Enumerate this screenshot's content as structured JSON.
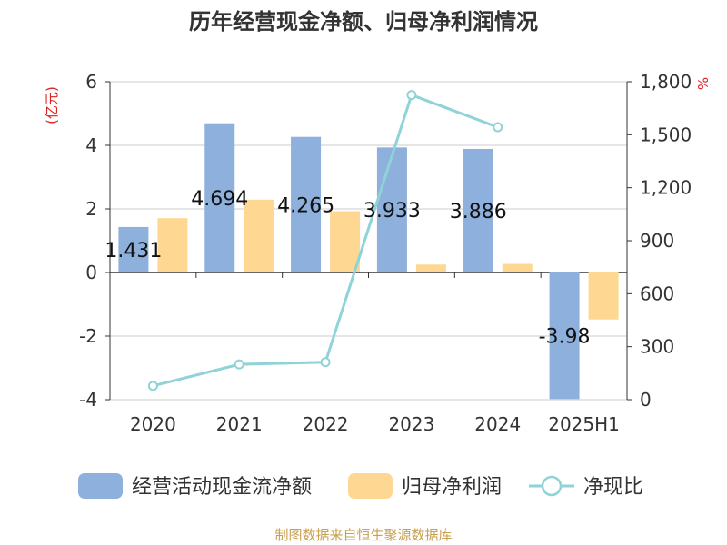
{
  "chart_data": {
    "type": "bar",
    "title": "历年经营现金净额、归母净利润情况",
    "categories": [
      "2020",
      "2021",
      "2022",
      "2023",
      "2024",
      "2025H1"
    ],
    "y_left": {
      "unit_label": "(亿元)",
      "range": [
        -4,
        6
      ],
      "ticks": [
        "-4",
        "-2",
        "0",
        "2",
        "4",
        "6"
      ]
    },
    "y_right": {
      "unit_label": "%",
      "range": [
        0,
        1800
      ],
      "ticks": [
        "0",
        "300",
        "600",
        "900",
        "1,200",
        "1,500",
        "1,800"
      ]
    },
    "series": [
      {
        "name": "经营活动现金流净额",
        "kind": "bar",
        "axis": "left",
        "color": "#8eb0dc",
        "values": [
          1.431,
          4.694,
          4.265,
          3.933,
          3.886,
          -3.98
        ],
        "labels": [
          "1.431",
          "4.694",
          "4.265",
          "3.933",
          "3.886",
          "-3.98"
        ]
      },
      {
        "name": "归母净利润",
        "kind": "bar",
        "axis": "left",
        "color": "#fed893",
        "values": [
          1.71,
          2.29,
          1.93,
          0.25,
          0.27,
          -1.48
        ]
      },
      {
        "name": "净现比",
        "kind": "line",
        "axis": "right",
        "color": "#8fd3d8",
        "values": [
          78,
          200,
          212,
          1725,
          1543,
          null
        ]
      }
    ],
    "grid": true,
    "legend_position": "bottom"
  },
  "source_note": "制图数据来自恒生聚源数据库"
}
